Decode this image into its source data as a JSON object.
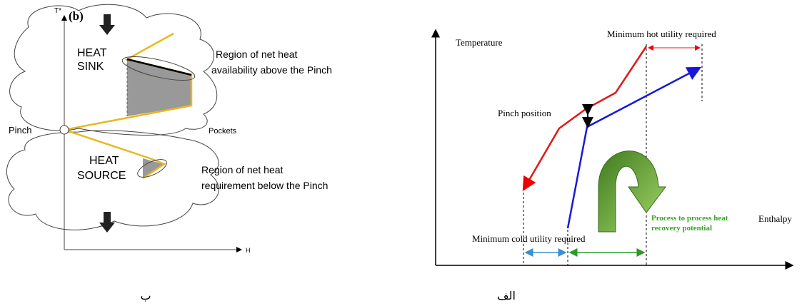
{
  "left_panel": {
    "axis_y_label": "T*",
    "panel_label": "(b)",
    "heat_sink": [
      "HEAT",
      "SINK"
    ],
    "sink_region_label": [
      "Region of net heat",
      "availability above the Pinch"
    ],
    "pinch_label": "Pinch",
    "pockets_label": "Pockets",
    "heat_source": [
      "HEAT",
      "SOURCE"
    ],
    "source_region_label": [
      "Region of net heat",
      "requirement below the Pinch"
    ],
    "axis_x_label": "H",
    "caption": "ب"
  },
  "right_panel": {
    "axis_y_label": "Temperature",
    "hot_utility_label": "Minimum hot utility required",
    "pinch_label": "Pinch position",
    "cold_utility_label": "Minimum cold utility required",
    "recovery_label": [
      "Process to process heat",
      "recovery potential"
    ],
    "axis_x_label": "Enthalpy",
    "caption": "الف"
  }
}
